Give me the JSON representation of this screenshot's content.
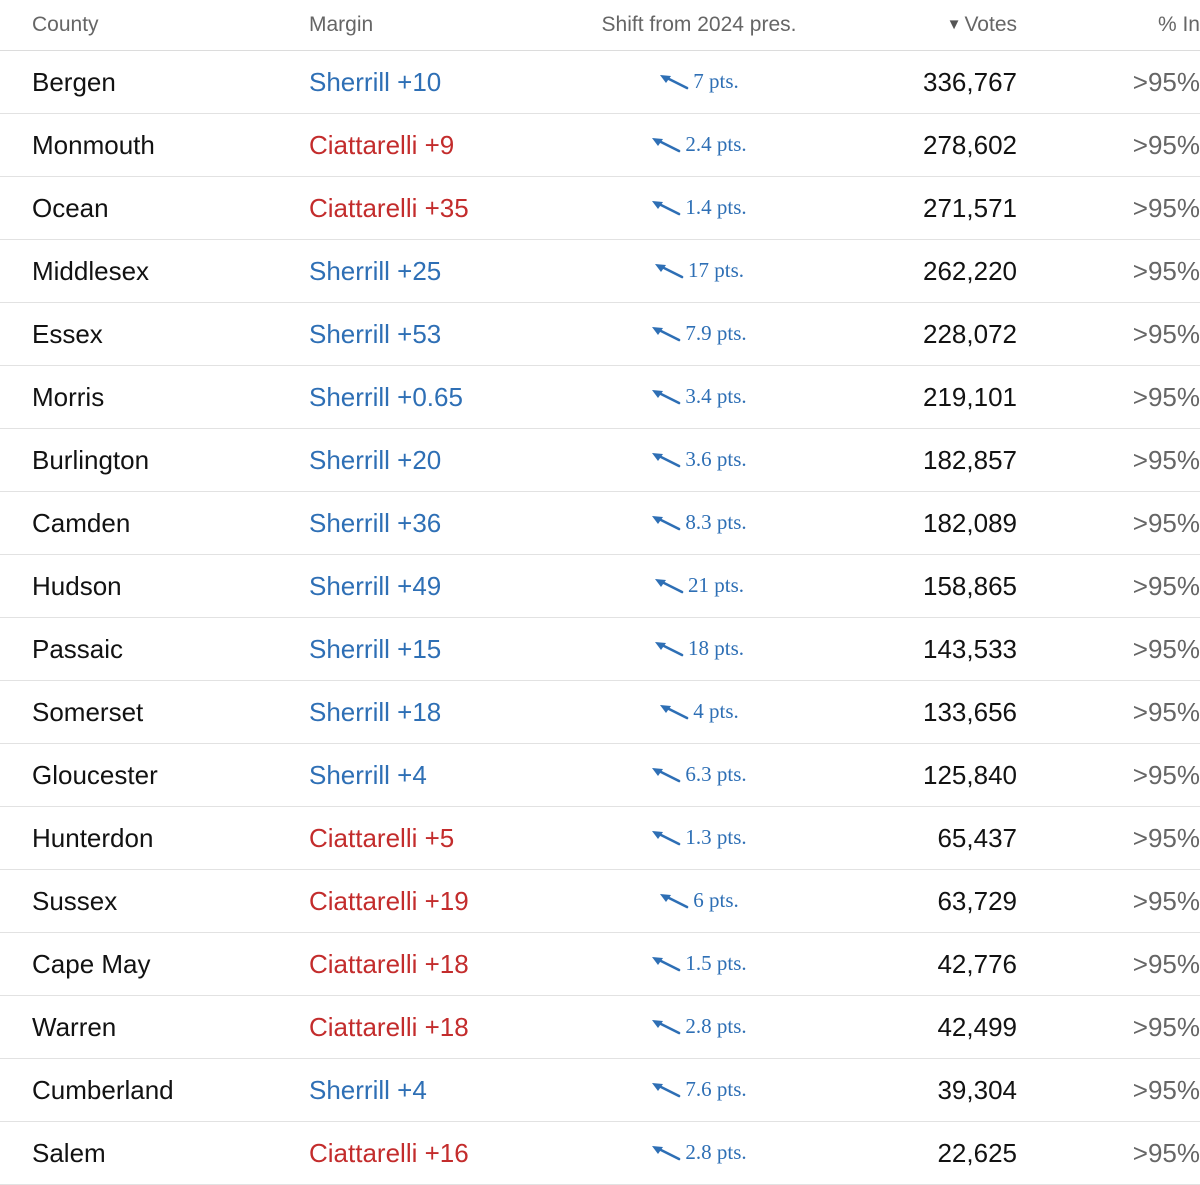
{
  "headers": {
    "county": "County",
    "margin": "Margin",
    "shift": "Shift from 2024 pres.",
    "votes": "Votes",
    "pct_in": "% In",
    "sort_icon": "▼"
  },
  "colors": {
    "dem": "#2e6fb5",
    "rep": "#c32c2c",
    "shift": "#2e6fb5"
  },
  "rows": [
    {
      "county": "Bergen",
      "margin": "Sherrill +10",
      "party": "dem",
      "shift": "7 pts.",
      "votes": "336,767",
      "pct_in": ">95%"
    },
    {
      "county": "Monmouth",
      "margin": "Ciattarelli +9",
      "party": "rep",
      "shift": "2.4 pts.",
      "votes": "278,602",
      "pct_in": ">95%"
    },
    {
      "county": "Ocean",
      "margin": "Ciattarelli +35",
      "party": "rep",
      "shift": "1.4 pts.",
      "votes": "271,571",
      "pct_in": ">95%"
    },
    {
      "county": "Middlesex",
      "margin": "Sherrill +25",
      "party": "dem",
      "shift": "17 pts.",
      "votes": "262,220",
      "pct_in": ">95%"
    },
    {
      "county": "Essex",
      "margin": "Sherrill +53",
      "party": "dem",
      "shift": "7.9 pts.",
      "votes": "228,072",
      "pct_in": ">95%"
    },
    {
      "county": "Morris",
      "margin": "Sherrill +0.65",
      "party": "dem",
      "shift": "3.4 pts.",
      "votes": "219,101",
      "pct_in": ">95%"
    },
    {
      "county": "Burlington",
      "margin": "Sherrill +20",
      "party": "dem",
      "shift": "3.6 pts.",
      "votes": "182,857",
      "pct_in": ">95%"
    },
    {
      "county": "Camden",
      "margin": "Sherrill +36",
      "party": "dem",
      "shift": "8.3 pts.",
      "votes": "182,089",
      "pct_in": ">95%"
    },
    {
      "county": "Hudson",
      "margin": "Sherrill +49",
      "party": "dem",
      "shift": "21 pts.",
      "votes": "158,865",
      "pct_in": ">95%"
    },
    {
      "county": "Passaic",
      "margin": "Sherrill +15",
      "party": "dem",
      "shift": "18 pts.",
      "votes": "143,533",
      "pct_in": ">95%"
    },
    {
      "county": "Somerset",
      "margin": "Sherrill +18",
      "party": "dem",
      "shift": "4 pts.",
      "votes": "133,656",
      "pct_in": ">95%"
    },
    {
      "county": "Gloucester",
      "margin": "Sherrill +4",
      "party": "dem",
      "shift": "6.3 pts.",
      "votes": "125,840",
      "pct_in": ">95%"
    },
    {
      "county": "Hunterdon",
      "margin": "Ciattarelli +5",
      "party": "rep",
      "shift": "1.3 pts.",
      "votes": "65,437",
      "pct_in": ">95%"
    },
    {
      "county": "Sussex",
      "margin": "Ciattarelli +19",
      "party": "rep",
      "shift": "6 pts.",
      "votes": "63,729",
      "pct_in": ">95%"
    },
    {
      "county": "Cape May",
      "margin": "Ciattarelli +18",
      "party": "rep",
      "shift": "1.5 pts.",
      "votes": "42,776",
      "pct_in": ">95%"
    },
    {
      "county": "Warren",
      "margin": "Ciattarelli +18",
      "party": "rep",
      "shift": "2.8 pts.",
      "votes": "42,499",
      "pct_in": ">95%"
    },
    {
      "county": "Cumberland",
      "margin": "Sherrill +4",
      "party": "dem",
      "shift": "7.6 pts.",
      "votes": "39,304",
      "pct_in": ">95%"
    },
    {
      "county": "Salem",
      "margin": "Ciattarelli +16",
      "party": "rep",
      "shift": "2.8 pts.",
      "votes": "22,625",
      "pct_in": ">95%"
    }
  ]
}
